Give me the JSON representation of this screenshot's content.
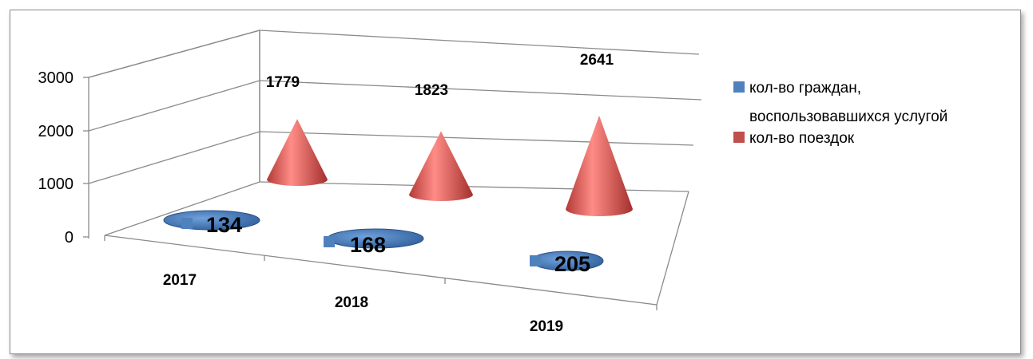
{
  "chart_data": {
    "type": "bar",
    "style": "3d-cone",
    "categories": [
      "2017",
      "2018",
      "2019"
    ],
    "series": [
      {
        "name": "кол-во граждан, воспользовавшихся услугой",
        "values": [
          134,
          168,
          205
        ],
        "color": "#4f81bd"
      },
      {
        "name": "кол-во поездок",
        "values": [
          1779,
          1823,
          2641
        ],
        "color": "#c0504d"
      }
    ],
    "data_labels": {
      "blue": [
        "134",
        "168",
        "205"
      ],
      "red": [
        "1779",
        "1823",
        "2641"
      ]
    },
    "yticks": [
      "0",
      "1000",
      "2000",
      "3000"
    ],
    "ylim": [
      0,
      3000
    ],
    "grid": true,
    "legend_position": "right",
    "legend": {
      "series1_line1": "кол-во граждан,",
      "series1_line2": "воспользовавшихся услугой",
      "series2": "кол-во поездок"
    }
  }
}
